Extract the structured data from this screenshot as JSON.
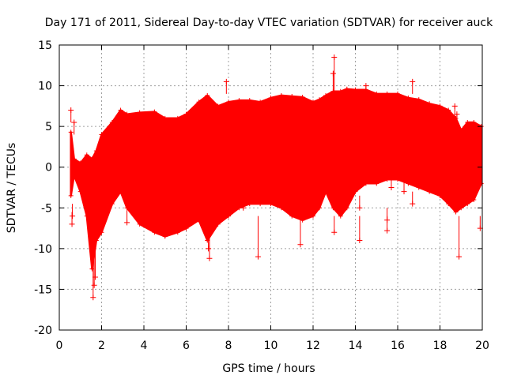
{
  "chart_data": {
    "type": "scatter",
    "title": "Day 171 of 2011, Sidereal Day-to-day VTEC variation (SDTVAR) for receiver auck",
    "xlabel": "GPS time / hours",
    "ylabel": "SDTVAR / TECUs",
    "xlim": [
      0,
      20
    ],
    "ylim": [
      -20,
      15
    ],
    "x_ticks": [
      0,
      2,
      4,
      6,
      8,
      10,
      12,
      14,
      16,
      18,
      20
    ],
    "y_ticks": [
      -20,
      -15,
      -10,
      -5,
      0,
      5,
      10,
      15
    ],
    "grid": true,
    "marker": "+",
    "series_color": "#ff0000",
    "series": [
      {
        "name": "SDTVAR",
        "envelope": {
          "x": [
            0.55,
            0.7,
            1.0,
            1.3,
            1.55,
            1.75,
            2.0,
            2.5,
            2.9,
            3.2,
            3.8,
            4.5,
            5.0,
            5.6,
            6.0,
            6.6,
            7.0,
            7.5,
            8.0,
            8.5,
            9.0,
            9.5,
            10.0,
            10.5,
            11.0,
            11.5,
            12.0,
            12.3,
            12.6,
            12.95,
            13.3,
            13.6,
            14.0,
            14.5,
            15.0,
            15.5,
            16.0,
            16.5,
            17.0,
            17.5,
            18.0,
            18.4,
            18.75,
            19.0,
            19.3,
            19.6,
            19.95
          ],
          "upper": [
            4.3,
            1.0,
            0.5,
            1.5,
            1.0,
            2.0,
            4.0,
            5.5,
            7.0,
            6.5,
            6.7,
            6.8,
            6.0,
            6.0,
            6.5,
            8.0,
            8.8,
            7.5,
            8.0,
            8.2,
            8.2,
            8.0,
            8.5,
            8.8,
            8.7,
            8.6,
            8.0,
            8.3,
            8.8,
            9.3,
            9.3,
            9.6,
            9.5,
            9.5,
            9.0,
            9.0,
            9.0,
            8.5,
            8.3,
            7.8,
            7.5,
            7.0,
            6.0,
            4.5,
            5.5,
            5.5,
            5.0
          ],
          "lower": [
            -3.5,
            -1.0,
            -3.0,
            -6.0,
            -12.5,
            -9.0,
            -8.0,
            -4.5,
            -3.0,
            -5.0,
            -7.0,
            -8.0,
            -8.5,
            -8.0,
            -7.5,
            -6.5,
            -9.0,
            -7.0,
            -6.0,
            -5.0,
            -4.5,
            -4.5,
            -4.5,
            -5.0,
            -6.0,
            -6.5,
            -6.0,
            -5.0,
            -3.0,
            -5.0,
            -6.0,
            -5.0,
            -3.0,
            -2.0,
            -2.0,
            -1.5,
            -1.5,
            -2.0,
            -2.5,
            -3.0,
            -3.5,
            -4.5,
            -5.5,
            -5.0,
            -4.5,
            -4.0,
            -2.0
          ]
        },
        "outliers": [
          {
            "x": 0.55,
            "y": 7.0
          },
          {
            "x": 0.6,
            "y": -7.0
          },
          {
            "x": 0.62,
            "y": -6.0
          },
          {
            "x": 0.7,
            "y": 5.5
          },
          {
            "x": 1.6,
            "y": -16.0
          },
          {
            "x": 1.65,
            "y": -14.5
          },
          {
            "x": 1.7,
            "y": -13.5
          },
          {
            "x": 3.2,
            "y": -6.8
          },
          {
            "x": 7.1,
            "y": -11.2
          },
          {
            "x": 7.05,
            "y": -10.0
          },
          {
            "x": 7.9,
            "y": 10.5
          },
          {
            "x": 9.4,
            "y": -11.0
          },
          {
            "x": 11.4,
            "y": -9.5
          },
          {
            "x": 13.0,
            "y": 13.5
          },
          {
            "x": 12.95,
            "y": 11.5
          },
          {
            "x": 13.0,
            "y": -8.0
          },
          {
            "x": 14.2,
            "y": -9.0
          },
          {
            "x": 14.2,
            "y": -5.0
          },
          {
            "x": 14.5,
            "y": 10.0
          },
          {
            "x": 15.5,
            "y": -6.5
          },
          {
            "x": 15.5,
            "y": -7.8
          },
          {
            "x": 16.7,
            "y": 10.5
          },
          {
            "x": 16.7,
            "y": -4.5
          },
          {
            "x": 18.7,
            "y": 7.5
          },
          {
            "x": 18.9,
            "y": -11.0
          },
          {
            "x": 19.9,
            "y": -7.5
          },
          {
            "x": 8.7,
            "y": -5.0
          },
          {
            "x": 7.7,
            "y": -6.0
          },
          {
            "x": 18.8,
            "y": 6.5
          },
          {
            "x": 16.3,
            "y": -3.0
          },
          {
            "x": 15.7,
            "y": -2.5
          }
        ]
      }
    ]
  }
}
